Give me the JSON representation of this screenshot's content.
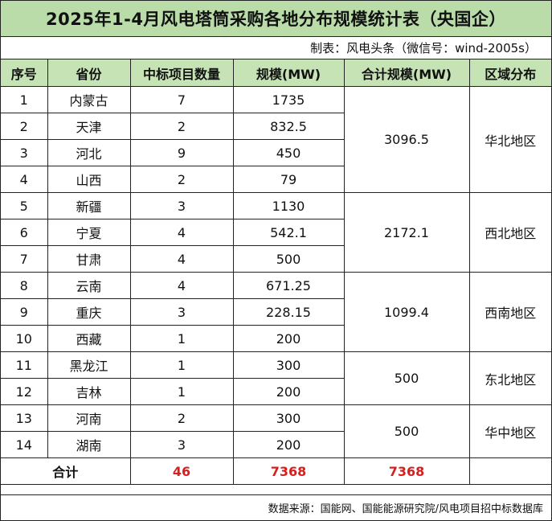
{
  "title": "2025年1-4月风电塔筒采购各地分布规模统计表（央国企）",
  "credit": "制表：风电头条（微信号：wind-2005s）",
  "headers": [
    "序号",
    "省份",
    "中标项目数量",
    "规模(MW)",
    "合计规模(MW)",
    "区域分布"
  ],
  "groups": [
    {
      "subtotal": "3096.5",
      "region": "华北地区",
      "rows": [
        {
          "no": "1",
          "province": "内蒙古",
          "count": "7",
          "scale": "1735"
        },
        {
          "no": "2",
          "province": "天津",
          "count": "2",
          "scale": "832.5"
        },
        {
          "no": "3",
          "province": "河北",
          "count": "9",
          "scale": "450"
        },
        {
          "no": "4",
          "province": "山西",
          "count": "2",
          "scale": "79"
        }
      ]
    },
    {
      "subtotal": "2172.1",
      "region": "西北地区",
      "rows": [
        {
          "no": "5",
          "province": "新疆",
          "count": "3",
          "scale": "1130"
        },
        {
          "no": "6",
          "province": "宁夏",
          "count": "4",
          "scale": "542.1"
        },
        {
          "no": "7",
          "province": "甘肃",
          "count": "4",
          "scale": "500"
        }
      ]
    },
    {
      "subtotal": "1099.4",
      "region": "西南地区",
      "rows": [
        {
          "no": "8",
          "province": "云南",
          "count": "4",
          "scale": "671.25"
        },
        {
          "no": "9",
          "province": "重庆",
          "count": "3",
          "scale": "228.15"
        },
        {
          "no": "10",
          "province": "西藏",
          "count": "1",
          "scale": "200"
        }
      ]
    },
    {
      "subtotal": "500",
      "region": "东北地区",
      "rows": [
        {
          "no": "11",
          "province": "黑龙江",
          "count": "1",
          "scale": "300"
        },
        {
          "no": "12",
          "province": "吉林",
          "count": "1",
          "scale": "200"
        }
      ]
    },
    {
      "subtotal": "500",
      "region": "华中地区",
      "rows": [
        {
          "no": "13",
          "province": "河南",
          "count": "2",
          "scale": "300"
        },
        {
          "no": "14",
          "province": "湖南",
          "count": "3",
          "scale": "200"
        }
      ]
    }
  ],
  "total": {
    "label": "合计",
    "count": "46",
    "scale": "7368",
    "subtotal": "7368"
  },
  "source": "数据来源：国能网、国能能源研究院/风电项目招中标数据库"
}
